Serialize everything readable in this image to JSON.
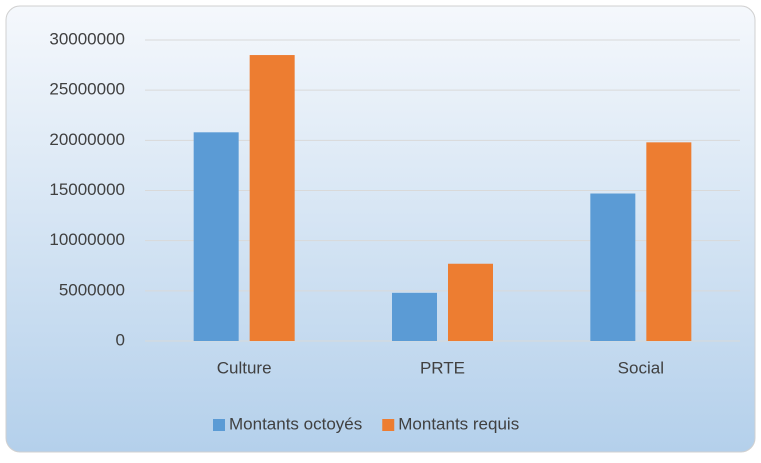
{
  "chart_data": {
    "type": "bar",
    "categories": [
      "Culture",
      "PRTE",
      "Social"
    ],
    "series": [
      {
        "name": "Montants octoyés",
        "color": "#5b9bd5",
        "values": [
          20800000,
          4800000,
          14700000
        ]
      },
      {
        "name": "Montants requis",
        "color": "#ed7d31",
        "values": [
          28500000,
          7700000,
          19800000
        ]
      }
    ],
    "ylim": [
      0,
      30000000
    ],
    "yticks": [
      0,
      5000000,
      10000000,
      15000000,
      20000000,
      25000000,
      30000000
    ],
    "grid": true,
    "legend": "bottom"
  }
}
